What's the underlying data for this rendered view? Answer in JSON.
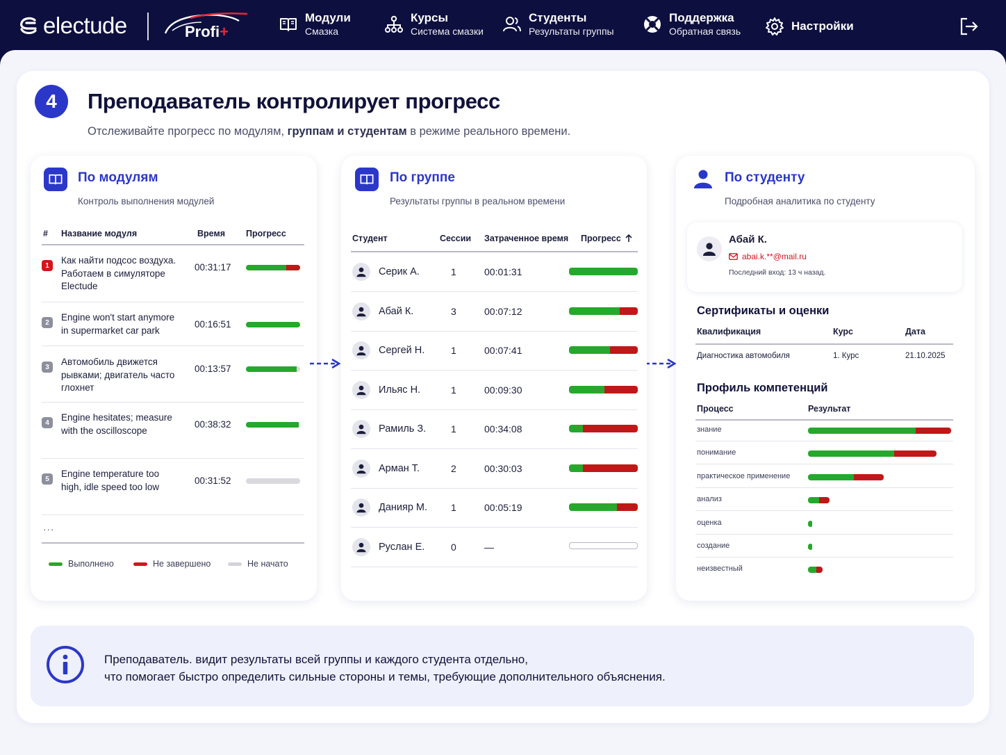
{
  "nav": {
    "logo_text": "electude",
    "profi_label": "Profi",
    "profi_plus": "+",
    "items": [
      {
        "title": "Модули",
        "sub": "Смазка",
        "icon": "book-icon"
      },
      {
        "title": "Курсы",
        "sub": "Система смазки",
        "icon": "hierarchy-icon"
      },
      {
        "title": "Студенты",
        "sub": "Результаты группы",
        "icon": "users-icon"
      },
      {
        "title": "Поддержка",
        "sub": "Обратная связь",
        "icon": "lifebuoy-icon"
      },
      {
        "title": "Настройки",
        "sub": "",
        "icon": "gear-icon"
      }
    ],
    "logout_icon": "logout-icon"
  },
  "header": {
    "step": "4",
    "title": "Преподаватель контролирует прогресс",
    "subtitle_a": "Отслеживайте прогресс по модулям, ",
    "subtitle_bold": "группам и студентам",
    "subtitle_b": " в режиме реального времени."
  },
  "modules": {
    "title": "По модулям",
    "subtitle": "Контроль выполнения модулей",
    "col_num": "#",
    "col_name": "Название модуля",
    "col_time": "Время",
    "col_progress": "Прогресс",
    "rows": [
      {
        "num": "1",
        "name": "Как найти подсос воздуха. Работаем в симуляторе Electude",
        "time": "00:31:17",
        "done": 0.74,
        "incomplete": 0.26
      },
      {
        "num": "2",
        "name": "Engine won't start anymore in supermarket car park",
        "time": "00:16:51",
        "done": 1.0,
        "incomplete": 0
      },
      {
        "num": "3",
        "name": "Автомобиль движется рывками; двигатель часто глохнет",
        "time": "00:13:57",
        "done": 0.94,
        "incomplete": 0
      },
      {
        "num": "4",
        "name": "Engine hesitates; measure with the oscilloscope",
        "time": "00:38:32",
        "done": 0.97,
        "incomplete": 0
      },
      {
        "num": "5",
        "name": "Engine temperature too high, idle speed too low",
        "time": "00:31:52",
        "done": 0,
        "incomplete": 0
      }
    ],
    "more": "...",
    "legend": [
      {
        "label": "Выполнено",
        "color": "#26a82c"
      },
      {
        "label": "Не завершено",
        "color": "#d4151d"
      },
      {
        "label": "Не начато",
        "color": "#d3d4da"
      }
    ]
  },
  "group": {
    "title": "По группе",
    "subtitle": "Результаты группы в реальном времени",
    "col_student": "Студент",
    "col_sessions": "Сессии",
    "col_time": "Затраченное время",
    "col_progress": "Прогресс",
    "sort_icon": "arrow-up-icon",
    "rows": [
      {
        "name": "Серик А.",
        "sessions": "1",
        "time": "00:01:31",
        "done": 1.0
      },
      {
        "name": "Абай К.",
        "sessions": "3",
        "time": "00:07:12",
        "done": 0.74
      },
      {
        "name": "Сергей Н.",
        "sessions": "1",
        "time": "00:07:41",
        "done": 0.6
      },
      {
        "name": "Ильяс Н.",
        "sessions": "1",
        "time": "00:09:30",
        "done": 0.52
      },
      {
        "name": "Рамиль З.",
        "sessions": "1",
        "time": "00:34:08",
        "done": 0.2
      },
      {
        "name": "Арман Т.",
        "sessions": "2",
        "time": "00:30:03",
        "done": 0.2
      },
      {
        "name": "Данияр М.",
        "sessions": "1",
        "time": "00:05:19",
        "done": 0.7
      },
      {
        "name": "Руслан Е.",
        "sessions": "0",
        "time": "—",
        "done": 0
      }
    ]
  },
  "student": {
    "title": "По студенту",
    "subtitle": "Подробная аналитика по студенту",
    "name": "Абай К.",
    "email": "abai.k.**@mail.ru",
    "last_login": "Последний вход: 13 ч назад.",
    "certs_title": "Сертификаты и оценки",
    "col_qual": "Квалификация",
    "col_course": "Курс",
    "col_date": "Дата",
    "cert": {
      "qual": "Диагностика автомобиля",
      "course": "1. Курс",
      "date": "21.10.2025"
    },
    "comp_title": "Профиль компетенций",
    "col_process": "Процесс",
    "col_result": "Результат",
    "competencies": [
      {
        "name": "знание",
        "done": 0.75,
        "incomplete": 0.25
      },
      {
        "name": "понимание",
        "done": 0.6,
        "incomplete": 0.3
      },
      {
        "name": "практическое применение",
        "done": 0.32,
        "incomplete": 0.21
      },
      {
        "name": "анализ",
        "done": 0.08,
        "incomplete": 0.07
      },
      {
        "name": "оценка",
        "done": 0.03,
        "incomplete": 0
      },
      {
        "name": "создание",
        "done": 0.03,
        "incomplete": 0
      },
      {
        "name": "неизвестный",
        "done": 0.06,
        "incomplete": 0.04
      }
    ]
  },
  "info": {
    "line1": "Преподаватель. видит результаты всей группы и каждого студента отдельно,",
    "line2": "что помогает быстро определить сильные стороны и темы, требующие дополнительного объяснения."
  }
}
